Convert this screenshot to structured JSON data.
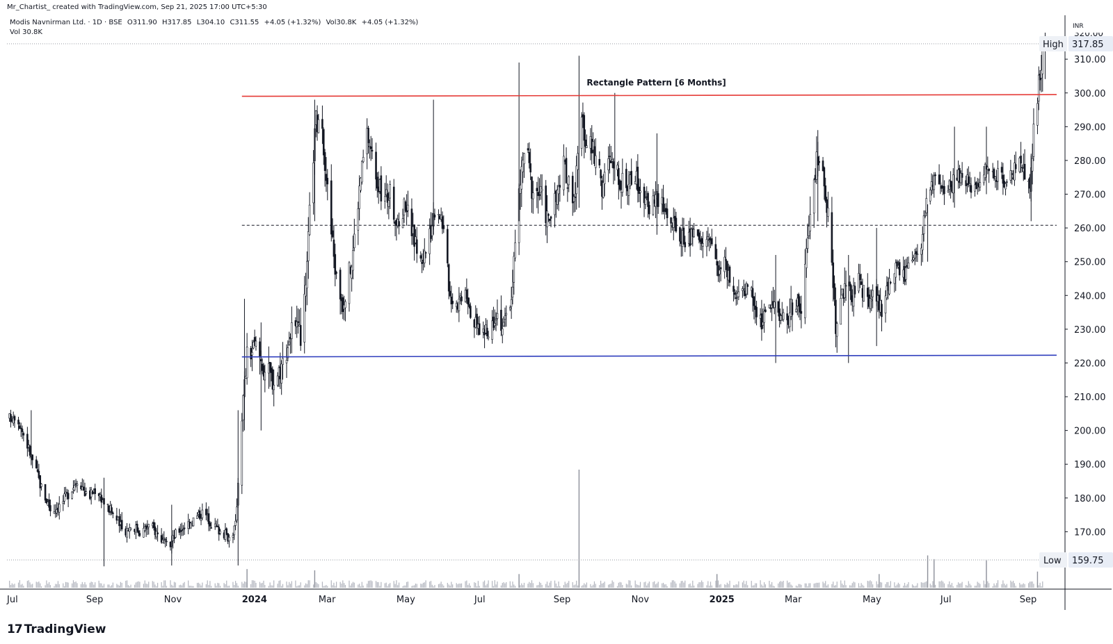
{
  "header": {
    "credit": "Mr_Chartist_ created with TradingView.com, Sep 21, 2025 17:00 UTC+5:30"
  },
  "legend": {
    "symbol": "Modis Navnirman Ltd. · 1D · BSE",
    "open": "O311.90",
    "high": "H317.85",
    "low": "L304.10",
    "close": "C311.55",
    "change": "+4.05 (+1.32%)",
    "volume": "Vol30.8K",
    "volume_change": "+4.05 (+1.32%)",
    "vol_line": "Vol 30.8K"
  },
  "price_axis": {
    "currency": "INR",
    "top_partial": "320.00"
  },
  "markers": {
    "high": {
      "label": "High",
      "value": "317.85"
    },
    "low": {
      "label": "Low",
      "value": "159.75"
    }
  },
  "annotation": {
    "text": "Rectangle Pattern [6 Months]"
  },
  "footer": {
    "brand": "TradingView",
    "brand_mark": "17"
  },
  "colors": {
    "resistance": "#e53935",
    "support": "#2e3dbd",
    "candle": "#131722",
    "volume": "#b2b5be",
    "axis": "#131722",
    "label_bg": "#e8edf6"
  },
  "chart_data": {
    "type": "candlestick",
    "ylim": [
      153,
      323
    ],
    "yticks": [
      170,
      180,
      190,
      200,
      210,
      220,
      230,
      240,
      250,
      260,
      270,
      280,
      290,
      300,
      310
    ],
    "ytick_labels": [
      "170.00",
      "180.00",
      "190.00",
      "200.00",
      "210.00",
      "220.00",
      "230.00",
      "240.00",
      "250.00",
      "260.00",
      "270.00",
      "280.00",
      "290.00",
      "300.00",
      "310.00"
    ],
    "x_range": [
      "2023-07-01",
      "2025-10-06"
    ],
    "xticks": [
      {
        "date": "2023-07-01",
        "label": "Jul"
      },
      {
        "date": "2023-09-01",
        "label": "Sep"
      },
      {
        "date": "2023-11-01",
        "label": "Nov"
      },
      {
        "date": "2024-01-01",
        "label": "2024",
        "bold": true
      },
      {
        "date": "2024-03-01",
        "label": "Mar"
      },
      {
        "date": "2024-05-01",
        "label": "May"
      },
      {
        "date": "2024-07-01",
        "label": "Jul"
      },
      {
        "date": "2024-09-01",
        "label": "Sep"
      },
      {
        "date": "2024-11-01",
        "label": "Nov"
      },
      {
        "date": "2025-01-01",
        "label": "2025",
        "bold": true
      },
      {
        "date": "2025-03-01",
        "label": "Mar"
      },
      {
        "date": "2025-05-01",
        "label": "May"
      },
      {
        "date": "2025-07-01",
        "label": "Jul"
      },
      {
        "date": "2025-09-01",
        "label": "Sep"
      }
    ],
    "resistance_line": {
      "from": {
        "date": "2024-01-01",
        "price": 299
      },
      "to": {
        "date": "2025-09-30",
        "price": 299.5
      }
    },
    "support_line": {
      "from": {
        "date": "2024-01-01",
        "price": 221.8
      },
      "to": {
        "date": "2025-09-30",
        "price": 222.3
      }
    },
    "mid_line": {
      "from": {
        "date": "2024-01-01",
        "price": 260.8
      },
      "to": {
        "date": "2025-09-30",
        "price": 260.8
      }
    },
    "high_value": 317.85,
    "low_value": 159.75,
    "annotation_anchor": {
      "date": "2024-09-27",
      "price": 302.2
    },
    "close_path": [
      [
        "2023-07-01",
        203
      ],
      [
        "2023-07-08",
        205
      ],
      [
        "2023-07-15",
        198
      ],
      [
        "2023-07-22",
        190
      ],
      [
        "2023-07-29",
        182
      ],
      [
        "2023-08-05",
        176
      ],
      [
        "2023-08-12",
        178
      ],
      [
        "2023-08-19",
        182
      ],
      [
        "2023-08-26",
        186
      ],
      [
        "2023-09-02",
        180
      ],
      [
        "2023-09-09",
        183
      ],
      [
        "2023-09-16",
        178
      ],
      [
        "2023-09-23",
        175
      ],
      [
        "2023-09-30",
        170
      ],
      [
        "2023-10-07",
        172
      ],
      [
        "2023-10-14",
        170
      ],
      [
        "2023-10-21",
        172
      ],
      [
        "2023-10-28",
        169
      ],
      [
        "2023-11-04",
        165
      ],
      [
        "2023-11-11",
        170
      ],
      [
        "2023-11-18",
        172
      ],
      [
        "2023-11-25",
        174
      ],
      [
        "2023-12-02",
        176
      ],
      [
        "2023-12-09",
        172
      ],
      [
        "2023-12-16",
        170
      ],
      [
        "2023-12-23",
        168
      ],
      [
        "2023-12-27",
        172
      ],
      [
        "2024-01-01",
        205
      ],
      [
        "2024-01-05",
        222
      ],
      [
        "2024-01-12",
        225
      ],
      [
        "2024-01-19",
        218
      ],
      [
        "2024-01-26",
        215
      ],
      [
        "2024-02-02",
        220
      ],
      [
        "2024-02-09",
        230
      ],
      [
        "2024-02-16",
        228
      ],
      [
        "2024-02-20",
        240
      ],
      [
        "2024-02-24",
        272
      ],
      [
        "2024-02-28",
        292
      ],
      [
        "2024-03-05",
        285
      ],
      [
        "2024-03-10",
        262
      ],
      [
        "2024-03-15",
        245
      ],
      [
        "2024-03-20",
        238
      ],
      [
        "2024-03-27",
        250
      ],
      [
        "2024-04-03",
        275
      ],
      [
        "2024-04-08",
        288
      ],
      [
        "2024-04-14",
        278
      ],
      [
        "2024-04-20",
        268
      ],
      [
        "2024-04-26",
        270
      ],
      [
        "2024-05-02",
        260
      ],
      [
        "2024-05-08",
        268
      ],
      [
        "2024-05-14",
        258
      ],
      [
        "2024-05-20",
        250
      ],
      [
        "2024-05-26",
        255
      ],
      [
        "2024-06-01",
        268
      ],
      [
        "2024-06-06",
        262
      ],
      [
        "2024-06-12",
        240
      ],
      [
        "2024-06-18",
        238
      ],
      [
        "2024-06-24",
        243
      ],
      [
        "2024-06-30",
        232
      ],
      [
        "2024-07-06",
        230
      ],
      [
        "2024-07-12",
        228
      ],
      [
        "2024-07-18",
        236
      ],
      [
        "2024-07-24",
        230
      ],
      [
        "2024-07-30",
        240
      ],
      [
        "2024-08-05",
        270
      ],
      [
        "2024-08-10",
        286
      ],
      [
        "2024-08-15",
        272
      ],
      [
        "2024-08-22",
        270
      ],
      [
        "2024-08-28",
        262
      ],
      [
        "2024-09-03",
        268
      ],
      [
        "2024-09-09",
        278
      ],
      [
        "2024-09-14",
        272
      ],
      [
        "2024-09-18",
        270
      ],
      [
        "2024-09-22",
        292
      ],
      [
        "2024-09-27",
        286
      ],
      [
        "2024-10-03",
        282
      ],
      [
        "2024-10-09",
        272
      ],
      [
        "2024-10-15",
        280
      ],
      [
        "2024-10-21",
        276
      ],
      [
        "2024-10-27",
        272
      ],
      [
        "2024-11-02",
        276
      ],
      [
        "2024-11-08",
        272
      ],
      [
        "2024-11-14",
        266
      ],
      [
        "2024-11-20",
        270
      ],
      [
        "2024-11-26",
        266
      ],
      [
        "2024-12-02",
        262
      ],
      [
        "2024-12-08",
        258
      ],
      [
        "2024-12-14",
        256
      ],
      [
        "2024-12-20",
        258
      ],
      [
        "2024-12-26",
        255
      ],
      [
        "2025-01-01",
        258
      ],
      [
        "2025-01-07",
        248
      ],
      [
        "2025-01-13",
        250
      ],
      [
        "2025-01-19",
        240
      ],
      [
        "2025-01-25",
        238
      ],
      [
        "2025-01-31",
        245
      ],
      [
        "2025-02-06",
        236
      ],
      [
        "2025-02-12",
        232
      ],
      [
        "2025-02-18",
        238
      ],
      [
        "2025-02-24",
        236
      ],
      [
        "2025-03-02",
        232
      ],
      [
        "2025-03-08",
        238
      ],
      [
        "2025-03-14",
        235
      ],
      [
        "2025-03-20",
        260
      ],
      [
        "2025-03-26",
        280
      ],
      [
        "2025-04-01",
        275
      ],
      [
        "2025-04-06",
        256
      ],
      [
        "2025-04-10",
        232
      ],
      [
        "2025-04-16",
        242
      ],
      [
        "2025-04-22",
        240
      ],
      [
        "2025-04-28",
        244
      ],
      [
        "2025-05-04",
        238
      ],
      [
        "2025-05-10",
        240
      ],
      [
        "2025-05-16",
        236
      ],
      [
        "2025-05-22",
        244
      ],
      [
        "2025-05-28",
        248
      ],
      [
        "2025-06-03",
        246
      ],
      [
        "2025-06-09",
        250
      ],
      [
        "2025-06-15",
        252
      ],
      [
        "2025-06-21",
        272
      ],
      [
        "2025-06-27",
        274
      ],
      [
        "2025-07-03",
        270
      ],
      [
        "2025-07-09",
        272
      ],
      [
        "2025-07-15",
        276
      ],
      [
        "2025-07-21",
        274
      ],
      [
        "2025-07-27",
        272
      ],
      [
        "2025-08-02",
        276
      ],
      [
        "2025-08-08",
        278
      ],
      [
        "2025-08-14",
        276
      ],
      [
        "2025-08-20",
        274
      ],
      [
        "2025-08-26",
        276
      ],
      [
        "2025-09-01",
        278
      ],
      [
        "2025-09-05",
        275
      ],
      [
        "2025-09-09",
        270
      ],
      [
        "2025-09-12",
        288
      ],
      [
        "2025-09-15",
        300
      ],
      [
        "2025-09-17",
        305
      ],
      [
        "2025-09-19",
        311.55
      ]
    ],
    "range_path": [
      [
        "2023-07-01",
        6
      ],
      [
        "2023-12-27",
        5
      ],
      [
        "2024-01-05",
        12
      ],
      [
        "2024-02-28",
        12
      ],
      [
        "2024-06-30",
        8
      ],
      [
        "2024-08-05",
        12
      ],
      [
        "2024-09-27",
        12
      ],
      [
        "2024-12-26",
        8
      ],
      [
        "2025-03-26",
        12
      ],
      [
        "2025-06-21",
        8
      ],
      [
        "2025-08-20",
        8
      ],
      [
        "2025-09-19",
        12
      ]
    ],
    "spikes": [
      {
        "date": "2023-07-20",
        "high": 206,
        "low": 190
      },
      {
        "date": "2023-09-15",
        "high": 186,
        "low": 159.75
      },
      {
        "date": "2023-11-07",
        "high": 178,
        "low": 160
      },
      {
        "date": "2023-12-29",
        "high": 206,
        "low": 160
      },
      {
        "date": "2024-01-03",
        "high": 239,
        "low": 200
      },
      {
        "date": "2024-01-16",
        "high": 232,
        "low": 200
      },
      {
        "date": "2024-02-27",
        "high": 298,
        "low": 262
      },
      {
        "date": "2024-05-30",
        "high": 298,
        "low": 258
      },
      {
        "date": "2024-08-05",
        "high": 309,
        "low": 262
      },
      {
        "date": "2024-09-21",
        "high": 311,
        "low": 266
      },
      {
        "date": "2024-10-19",
        "high": 300,
        "low": 274
      },
      {
        "date": "2024-11-21",
        "high": 288,
        "low": 258
      },
      {
        "date": "2025-02-22",
        "high": 252,
        "low": 220
      },
      {
        "date": "2025-03-27",
        "high": 289,
        "low": 262
      },
      {
        "date": "2025-04-20",
        "high": 252,
        "low": 220
      },
      {
        "date": "2025-05-12",
        "high": 260,
        "low": 225
      },
      {
        "date": "2025-06-21",
        "high": 267,
        "low": 250
      },
      {
        "date": "2025-07-12",
        "high": 290,
        "low": 266
      },
      {
        "date": "2025-08-06",
        "high": 290,
        "low": 270
      },
      {
        "date": "2025-09-10",
        "high": 282,
        "low": 262
      },
      {
        "date": "2025-09-21",
        "high": 317.85,
        "low": 304.1
      }
    ],
    "volume": {
      "baseline": 0,
      "typical": 8,
      "max": 190,
      "spikes": [
        {
          "date": "2024-01-05",
          "value": 30
        },
        {
          "date": "2024-02-27",
          "value": 28
        },
        {
          "date": "2024-08-05",
          "value": 22
        },
        {
          "date": "2024-09-21",
          "value": 190
        },
        {
          "date": "2025-01-07",
          "value": 22
        },
        {
          "date": "2025-05-14",
          "value": 22
        },
        {
          "date": "2025-06-21",
          "value": 52
        },
        {
          "date": "2025-06-26",
          "value": 46
        },
        {
          "date": "2025-08-06",
          "value": 44
        },
        {
          "date": "2025-09-15",
          "value": 26
        }
      ]
    }
  }
}
